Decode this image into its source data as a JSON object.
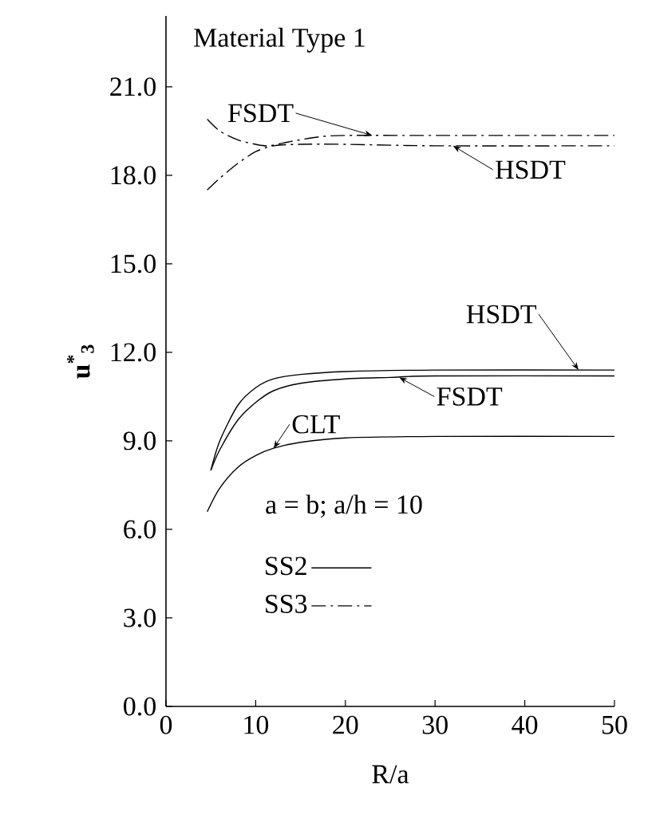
{
  "chart_data": {
    "type": "line",
    "xlabel": "R/a",
    "ylabel": "u$^{*}$$_{3}$",
    "xlim": [
      0,
      50
    ],
    "ylim": [
      0,
      23.4
    ],
    "xticks": [
      0,
      10,
      20,
      30,
      40,
      50
    ],
    "yticks": [
      {
        "value": 0,
        "label": "0.0"
      },
      {
        "value": 3,
        "label": "3.0"
      },
      {
        "value": 6,
        "label": "6.0"
      },
      {
        "value": 9,
        "label": "9.0"
      },
      {
        "value": 12,
        "label": "12.0"
      },
      {
        "value": 15,
        "label": "15.0"
      },
      {
        "value": 18,
        "label": "18.0"
      },
      {
        "value": 21,
        "label": "21.0"
      }
    ],
    "grid": false,
    "legend": "bottom left",
    "marker": "none",
    "series": [
      {
        "name": "SS2",
        "color": "#000000",
        "line_style": "solid",
        "x": [
          5,
          6,
          8,
          10,
          12,
          15,
          20,
          30,
          50
        ],
        "values": [
          8.0,
          9.0,
          10.2,
          10.8,
          11.1,
          11.25,
          11.35,
          11.4,
          11.4
        ]
      },
      {
        "color": "#000000",
        "line_style": "solid",
        "x": [
          5,
          6,
          8,
          10,
          12,
          15,
          20,
          25,
          30,
          50
        ],
        "values": [
          8.0,
          8.7,
          9.7,
          10.3,
          10.7,
          10.95,
          11.1,
          11.15,
          11.2,
          11.2
        ]
      },
      {
        "color": "#000000",
        "line_style": "solid",
        "x": [
          4.6,
          6,
          8,
          10,
          12,
          15,
          20,
          30,
          50
        ],
        "values": [
          6.6,
          7.4,
          8.1,
          8.5,
          8.75,
          8.95,
          9.1,
          9.15,
          9.15
        ]
      },
      {
        "name": "SS3",
        "color": "#000000",
        "line_style": "dashdot",
        "x": [
          4.6,
          6,
          8,
          10,
          11.5,
          14,
          17,
          20,
          30,
          50
        ],
        "values": [
          19.9,
          19.5,
          19.2,
          19.05,
          19.0,
          19.15,
          19.3,
          19.35,
          19.35,
          19.35
        ]
      },
      {
        "color": "#000000",
        "line_style": "dashdot",
        "x": [
          4.6,
          6,
          8,
          10,
          12,
          15,
          20,
          30,
          50
        ],
        "values": [
          17.5,
          17.9,
          18.4,
          18.8,
          19.0,
          19.05,
          19.05,
          19.0,
          19.0
        ]
      }
    ],
    "annotations": [
      "Material Type 1",
      "a = b;   a/h = 10",
      {
        "text": "FSDT",
        "x": 23,
        "y": 19.35
      },
      {
        "text": "HSDT",
        "x": 32,
        "y": 19.0
      },
      {
        "text": "HSDT",
        "x": 46,
        "y": 11.4
      },
      {
        "text": "FSDT",
        "x": 26,
        "y": 11.15
      },
      {
        "text": "CLT",
        "x": 12,
        "y": 8.75
      }
    ]
  }
}
